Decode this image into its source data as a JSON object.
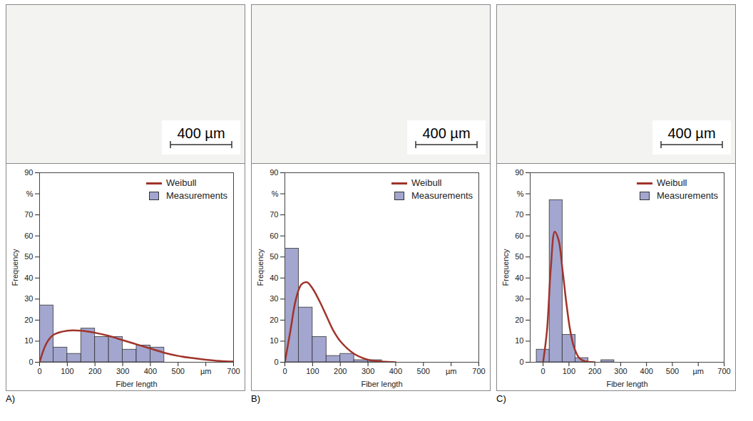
{
  "chart_data": [
    {
      "type": "histogram",
      "title": "A)",
      "scale_bar": "400 µm",
      "xlabel": "Fiber length",
      "ylabel": "Frequency",
      "xlim": [
        0,
        700
      ],
      "xticks": [
        0,
        100,
        200,
        300,
        400,
        500,
        {
          "value": 600,
          "label": "µm"
        },
        700
      ],
      "ylim": [
        0,
        90
      ],
      "yticks": [
        0,
        10,
        20,
        30,
        40,
        50,
        60,
        70,
        {
          "value": 80,
          "label": "%"
        },
        90
      ],
      "legend": "top-right",
      "series": [
        {
          "name": "Weibull",
          "type": "line",
          "color": "#a0342a",
          "x": [
            0,
            25,
            50,
            100,
            150,
            200,
            250,
            300,
            350,
            400,
            450,
            500,
            550,
            600,
            650,
            700
          ],
          "values": [
            0,
            9,
            13,
            15,
            15,
            14,
            12.5,
            10.5,
            8.5,
            6.5,
            4.5,
            3,
            2,
            1.2,
            0.6,
            0.3
          ]
        },
        {
          "name": "Measurements",
          "type": "bar",
          "color": "#a3a6cf",
          "bins": [
            0,
            50,
            100,
            150,
            200,
            250,
            300,
            350,
            400,
            450
          ],
          "values": [
            27,
            7,
            4,
            16,
            12,
            12,
            6,
            8,
            7
          ]
        }
      ]
    },
    {
      "type": "histogram",
      "title": "B)",
      "scale_bar": "400 µm",
      "xlabel": "Fiber length",
      "ylabel": "Frequency",
      "xlim": [
        0,
        700
      ],
      "xticks": [
        0,
        100,
        200,
        300,
        400,
        500,
        {
          "value": 600,
          "label": "µm"
        },
        700
      ],
      "ylim": [
        0,
        90
      ],
      "yticks": [
        0,
        10,
        20,
        30,
        40,
        50,
        60,
        70,
        {
          "value": 80,
          "label": "%"
        },
        90
      ],
      "legend": "top-right",
      "series": [
        {
          "name": "Weibull",
          "type": "line",
          "color": "#a0342a",
          "x": [
            0,
            20,
            40,
            60,
            80,
            100,
            125,
            150,
            175,
            200,
            250,
            300,
            350,
            400
          ],
          "values": [
            0,
            15,
            30,
            37,
            38,
            35,
            29,
            22,
            15,
            10,
            4,
            1.2,
            0.3,
            0
          ]
        },
        {
          "name": "Measurements",
          "type": "bar",
          "color": "#a3a6cf",
          "bins": [
            0,
            50,
            100,
            150,
            200,
            250,
            300,
            350
          ],
          "values": [
            54,
            26,
            12,
            3,
            4,
            1,
            1
          ]
        }
      ]
    },
    {
      "type": "histogram",
      "title": "C)",
      "scale_bar": "400 µm",
      "xlabel": "Fiber length",
      "ylabel": "Frequency",
      "xlim": [
        -50,
        700
      ],
      "xticks": [
        0,
        100,
        200,
        300,
        400,
        500,
        {
          "value": 600,
          "label": "µm"
        },
        700
      ],
      "ylim": [
        0,
        90
      ],
      "yticks": [
        0,
        10,
        20,
        30,
        40,
        50,
        60,
        70,
        {
          "value": 80,
          "label": "%"
        },
        90
      ],
      "legend": "top-right",
      "series": [
        {
          "name": "Weibull",
          "type": "line",
          "color": "#a0342a",
          "x": [
            0,
            15,
            30,
            45,
            60,
            75,
            90,
            105,
            120,
            140,
            160,
            200
          ],
          "values": [
            0,
            15,
            45,
            62,
            58,
            44,
            28,
            15,
            7,
            2,
            0.5,
            0
          ]
        },
        {
          "name": "Measurements",
          "type": "bar",
          "color": "#a3a6cf",
          "bins": [
            -25,
            25,
            75,
            125,
            175,
            225,
            275
          ],
          "values": [
            6,
            77,
            13,
            2,
            0,
            1
          ]
        }
      ]
    }
  ]
}
